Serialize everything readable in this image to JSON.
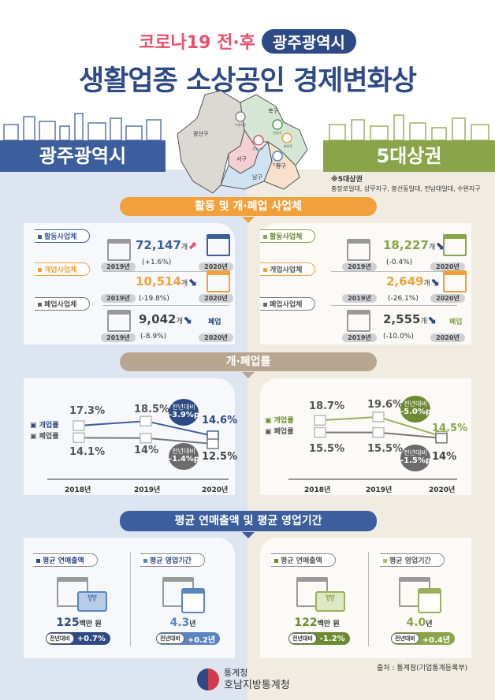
{
  "header": {
    "title_top": "코로나19 전·후",
    "region_pill": "광주광역시",
    "title_main": "생활업종 소상공인 경제변화상"
  },
  "banners": {
    "left": "광주광역시",
    "right": "5대상권"
  },
  "map": {
    "districts": [
      "광산구",
      "북구",
      "서구",
      "남구",
      "동구"
    ],
    "pins": [
      "수완지구",
      "전남대",
      "상무지구",
      "충장로",
      "봉선동"
    ]
  },
  "note": {
    "title": "※5대상권",
    "text": "충장로일대, 상무지구, 봉선동일대, 전남대일대, 수완지구"
  },
  "colors": {
    "blue": "#3d5e9c",
    "green": "#8aa44a",
    "orange": "#f0a13c",
    "gray": "#6b6b6b",
    "red": "#e8506a"
  },
  "sections": {
    "s1": "활동 및 개·폐업 사업체",
    "s2": "개·폐업률",
    "s3": "평균 연매출액 및 평균 영업기간"
  },
  "businesses": {
    "labels": [
      "활동사업체",
      "개업사업체",
      "폐업사업체"
    ],
    "store_label": [
      "활동사업체",
      "개업사업체"
    ],
    "year2019": "2019년",
    "year2020": "2020년",
    "closed": "폐업",
    "left": [
      {
        "value": "72,147",
        "unit": "개",
        "change": "(+1.6%)"
      },
      {
        "value": "10,514",
        "unit": "개",
        "change": "(-19.8%)"
      },
      {
        "value": "9,042",
        "unit": "개",
        "change": "(-8.9%)"
      }
    ],
    "right": [
      {
        "value": "18,227",
        "unit": "개",
        "change": "(-0.4%)"
      },
      {
        "value": "2,649",
        "unit": "개",
        "change": "(-26.1%)"
      },
      {
        "value": "2,555",
        "unit": "개",
        "change": "(-10.0%)"
      }
    ]
  },
  "rates": {
    "legend": [
      "개업률",
      "폐업률"
    ],
    "years": [
      "2018년",
      "2019년",
      "2020년"
    ],
    "yoy_label": "전년대비",
    "left": {
      "open": [
        17.3,
        18.5,
        14.6
      ],
      "close": [
        14.1,
        14.0,
        12.5
      ],
      "open_change": "-3.9%p",
      "close_change": "-1.4%p"
    },
    "right": {
      "open": [
        18.7,
        19.6,
        14.5
      ],
      "close": [
        15.5,
        15.5,
        14.0
      ],
      "open_change": "-5.0%p",
      "close_change": "-1.5%p"
    }
  },
  "averages": {
    "sales_label": "평균 연매출액",
    "period_label": "평균 영업기간",
    "yoy_label": "전년대비",
    "left": {
      "sales": "125",
      "sales_unit": "백만 원",
      "sales_change": "+0.7%",
      "period": "4.3",
      "period_unit": "년",
      "period_change": "+0.2년"
    },
    "right": {
      "sales": "122",
      "sales_unit": "백만 원",
      "sales_change": "-1.2%",
      "period": "4.0",
      "period_unit": "년",
      "period_change": "+0.4년"
    }
  },
  "footer": {
    "source": "출처 : 통계청(기업통계등록부)",
    "org1": "통계청",
    "org2": "호남지방통계청"
  }
}
